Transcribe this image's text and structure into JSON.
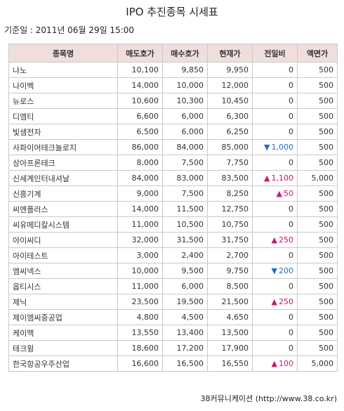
{
  "title": "IPO 추진종목 시세표",
  "ref_date": "기준일 : 2011년 06월 29일 15:00",
  "columns": [
    "종목명",
    "매도호가",
    "매수호가",
    "현재가",
    "전일비",
    "액면가"
  ],
  "rows": [
    {
      "name": "나노",
      "ask": "10,100",
      "bid": "9,850",
      "price": "9,950",
      "dir": "",
      "change": "0",
      "par": "500"
    },
    {
      "name": "나이벡",
      "ask": "14,000",
      "bid": "10,000",
      "price": "12,000",
      "dir": "",
      "change": "0",
      "par": "500"
    },
    {
      "name": "뉴로스",
      "ask": "10,600",
      "bid": "10,300",
      "price": "10,450",
      "dir": "",
      "change": "0",
      "par": "500"
    },
    {
      "name": "디엠티",
      "ask": "6,600",
      "bid": "6,000",
      "price": "6,300",
      "dir": "",
      "change": "0",
      "par": "500"
    },
    {
      "name": "빛샘전자",
      "ask": "6,500",
      "bid": "6,000",
      "price": "6,250",
      "dir": "",
      "change": "0",
      "par": "500"
    },
    {
      "name": "사파이어테크놀로지",
      "ask": "86,000",
      "bid": "84,000",
      "price": "85,000",
      "dir": "down",
      "change": "1,000",
      "par": "500"
    },
    {
      "name": "상아프론테크",
      "ask": "8,000",
      "bid": "7,500",
      "price": "7,750",
      "dir": "",
      "change": "0",
      "par": "500"
    },
    {
      "name": "신세계인터내셔날",
      "ask": "84,000",
      "bid": "83,000",
      "price": "83,500",
      "dir": "up",
      "change": "1,100",
      "par": "5,000"
    },
    {
      "name": "신흥기계",
      "ask": "9,000",
      "bid": "7,500",
      "price": "8,250",
      "dir": "up",
      "change": "50",
      "par": "500"
    },
    {
      "name": "씨엔플러스",
      "ask": "14,000",
      "bid": "11,500",
      "price": "12,750",
      "dir": "",
      "change": "0",
      "par": "500"
    },
    {
      "name": "씨유메디칼시스템",
      "ask": "11,000",
      "bid": "10,500",
      "price": "10,750",
      "dir": "",
      "change": "0",
      "par": "500"
    },
    {
      "name": "아이씨디",
      "ask": "32,000",
      "bid": "31,500",
      "price": "31,750",
      "dir": "up",
      "change": "250",
      "par": "500"
    },
    {
      "name": "아이테스트",
      "ask": "3,000",
      "bid": "2,400",
      "price": "2,700",
      "dir": "",
      "change": "0",
      "par": "500"
    },
    {
      "name": "엠씨넥스",
      "ask": "10,000",
      "bid": "9,500",
      "price": "9,750",
      "dir": "down",
      "change": "200",
      "par": "500"
    },
    {
      "name": "옵티시스",
      "ask": "11,000",
      "bid": "6,000",
      "price": "8,500",
      "dir": "",
      "change": "0",
      "par": "500"
    },
    {
      "name": "제닉",
      "ask": "23,500",
      "bid": "19,500",
      "price": "21,500",
      "dir": "up",
      "change": "250",
      "par": "500"
    },
    {
      "name": "제이엠씨중공업",
      "ask": "4,800",
      "bid": "4,500",
      "price": "4,650",
      "dir": "",
      "change": "0",
      "par": "500"
    },
    {
      "name": "케이맥",
      "ask": "13,550",
      "bid": "13,400",
      "price": "13,500",
      "dir": "",
      "change": "0",
      "par": "500"
    },
    {
      "name": "테크윙",
      "ask": "18,600",
      "bid": "17,200",
      "price": "17,900",
      "dir": "",
      "change": "0",
      "par": "500"
    },
    {
      "name": "한국항공우주산업",
      "ask": "16,600",
      "bid": "16,500",
      "price": "16,550",
      "dir": "up",
      "change": "100",
      "par": "5,000"
    }
  ],
  "symbols": {
    "up": "▲",
    "down": "▼"
  },
  "colors": {
    "header_bg": "#f0dedd",
    "up": "#c8176a",
    "down": "#1f6fc1",
    "border": "#c9c9c9"
  },
  "footer": "38커뮤니케이션 (http://www.38.co.kr)"
}
